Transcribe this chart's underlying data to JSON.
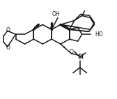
{
  "background": "#ffffff",
  "lc": "#1a1a1a",
  "lw": 1.1,
  "lw_bold": 2.5,
  "figsize": [
    1.68,
    1.42
  ],
  "dpi": 100,
  "xlim": [
    0,
    168
  ],
  "ylim": [
    0,
    142
  ]
}
